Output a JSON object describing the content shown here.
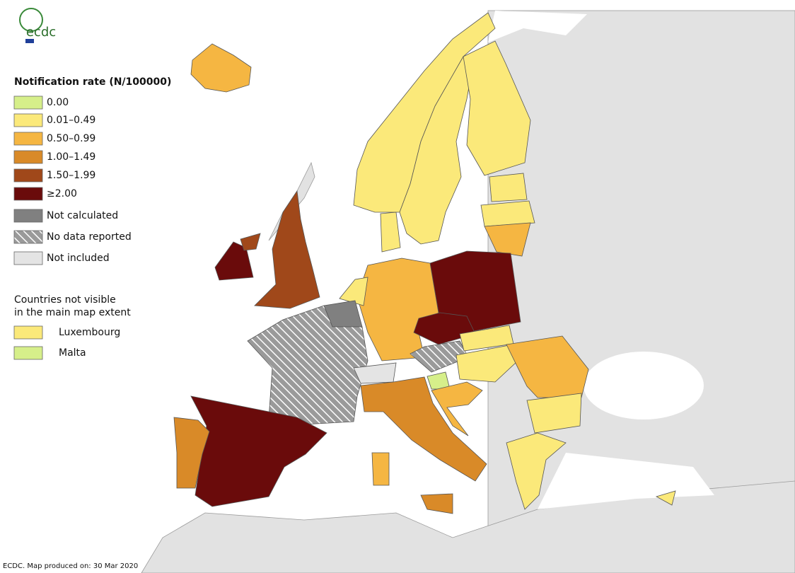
{
  "logo": "ecdc",
  "legend": {
    "title": "Notification rate (N/100000)",
    "items": [
      {
        "label": "0.00",
        "color": "#d6ef8a"
      },
      {
        "label": "0.01–0.49",
        "color": "#fbe97a"
      },
      {
        "label": "0.50–0.99",
        "color": "#f5b642"
      },
      {
        "label": "1.00–1.49",
        "color": "#d98a28"
      },
      {
        "label": "1.50–1.99",
        "color": "#a0481a"
      },
      {
        "label": "≥2.00",
        "color": "#6a0b0b"
      },
      {
        "label": "Not calculated",
        "color": "#808080"
      },
      {
        "label": "No data reported",
        "color": "#9a9a9a",
        "hatch": true
      },
      {
        "label": "Not included",
        "color": "#e4e4e4"
      }
    ]
  },
  "extra_legend": {
    "title_lines": [
      "Countries not visible",
      "in the main map extent"
    ],
    "items": [
      {
        "label": "Luxembourg",
        "color": "#fbe97a"
      },
      {
        "label": "Malta",
        "color": "#d6ef8a"
      }
    ]
  },
  "footer": "ECDC. Map produced on: 30 Mar 2020"
}
